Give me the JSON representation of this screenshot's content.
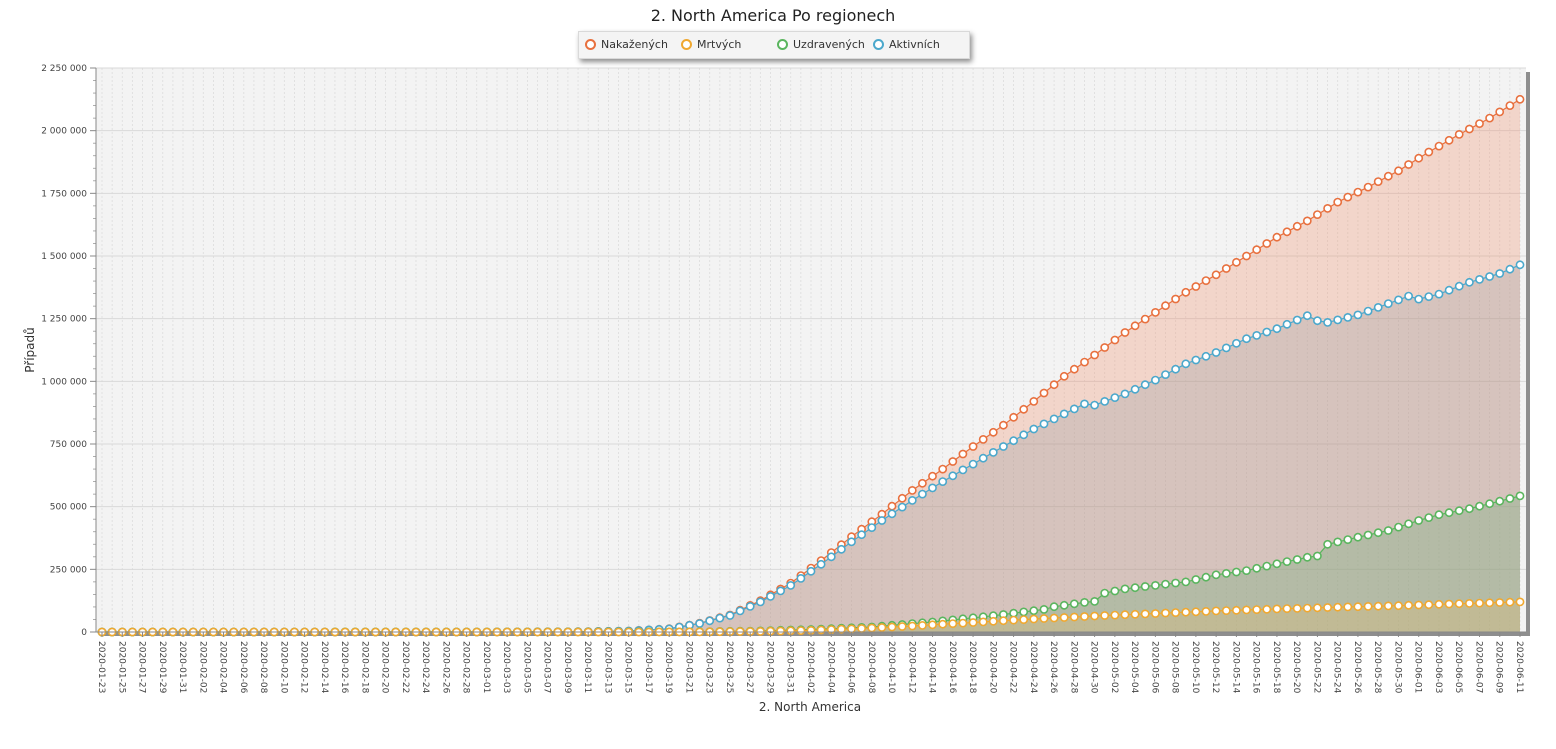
{
  "chart_data": {
    "type": "area",
    "title": "2. North America Po regionech",
    "xlabel": "2. North America",
    "ylabel": "Případů",
    "ylim": [
      0,
      2250000
    ],
    "y_ticks": [
      0,
      250000,
      500000,
      750000,
      1000000,
      1250000,
      1500000,
      1750000,
      2000000,
      2250000
    ],
    "y_tick_labels": [
      "0",
      "250 000",
      "500 000",
      "750 000",
      "1 000 000",
      "1 250 000",
      "1 500 000",
      "1 750 000",
      "2 000 000",
      "2 250 000"
    ],
    "x_start": "2020-01-23",
    "x_end": "2020-06-11",
    "x_tick_labels": [
      "2020-01-23",
      "2020-01-25",
      "2020-01-27",
      "2020-01-29",
      "2020-01-31",
      "2020-02-02",
      "2020-02-04",
      "2020-02-06",
      "2020-02-08",
      "2020-02-10",
      "2020-02-12",
      "2020-02-14",
      "2020-02-16",
      "2020-02-18",
      "2020-02-20",
      "2020-02-22",
      "2020-02-24",
      "2020-02-26",
      "2020-02-28",
      "2020-03-01",
      "2020-03-03",
      "2020-03-05",
      "2020-03-07",
      "2020-03-09",
      "2020-03-11",
      "2020-03-13",
      "2020-03-15",
      "2020-03-17",
      "2020-03-19",
      "2020-03-21",
      "2020-03-23",
      "2020-03-25",
      "2020-03-27",
      "2020-03-29",
      "2020-03-31",
      "2020-04-02",
      "2020-04-04",
      "2020-04-06",
      "2020-04-08",
      "2020-04-10",
      "2020-04-12",
      "2020-04-14",
      "2020-04-16",
      "2020-04-18",
      "2020-04-20",
      "2020-04-22",
      "2020-04-24",
      "2020-04-26",
      "2020-04-28",
      "2020-04-30",
      "2020-05-02",
      "2020-05-04",
      "2020-05-06",
      "2020-05-08",
      "2020-05-10",
      "2020-05-12",
      "2020-05-14",
      "2020-05-16",
      "2020-05-18",
      "2020-05-20",
      "2020-05-22",
      "2020-05-24",
      "2020-05-26",
      "2020-05-28",
      "2020-05-30",
      "2020-06-01",
      "2020-06-03",
      "2020-06-05",
      "2020-06-07",
      "2020-06-09",
      "2020-06-11"
    ],
    "grid": true,
    "legend_position": "top-center",
    "series": [
      {
        "name": "Nakažených",
        "color": "#e8703e",
        "fill": "rgba(240,150,115,0.32)",
        "points": [
          [
            "2020-01-23",
            0
          ],
          [
            "2020-03-01",
            100
          ],
          [
            "2020-03-10",
            1000
          ],
          [
            "2020-03-15",
            4000
          ],
          [
            "2020-03-19",
            13000
          ],
          [
            "2020-03-22",
            35000
          ],
          [
            "2020-03-25",
            68000
          ],
          [
            "2020-03-28",
            125000
          ],
          [
            "2020-03-31",
            195000
          ],
          [
            "2020-04-03",
            285000
          ],
          [
            "2020-04-06",
            380000
          ],
          [
            "2020-04-09",
            470000
          ],
          [
            "2020-04-12",
            565000
          ],
          [
            "2020-04-15",
            650000
          ],
          [
            "2020-04-18",
            740000
          ],
          [
            "2020-04-21",
            825000
          ],
          [
            "2020-04-24",
            920000
          ],
          [
            "2020-04-27",
            1020000
          ],
          [
            "2020-04-30",
            1105000
          ],
          [
            "2020-05-03",
            1195000
          ],
          [
            "2020-05-06",
            1275000
          ],
          [
            "2020-05-09",
            1355000
          ],
          [
            "2020-05-12",
            1425000
          ],
          [
            "2020-05-15",
            1500000
          ],
          [
            "2020-05-18",
            1575000
          ],
          [
            "2020-05-21",
            1640000
          ],
          [
            "2020-05-24",
            1715000
          ],
          [
            "2020-05-27",
            1775000
          ],
          [
            "2020-05-30",
            1840000
          ],
          [
            "2020-06-02",
            1915000
          ],
          [
            "2020-06-05",
            1985000
          ],
          [
            "2020-06-08",
            2050000
          ],
          [
            "2020-06-11",
            2125000
          ]
        ]
      },
      {
        "name": "Mrtvých",
        "color": "#f0a830",
        "fill": "rgba(225,185,110,0.30)",
        "points": [
          [
            "2020-01-23",
            0
          ],
          [
            "2020-03-15",
            50
          ],
          [
            "2020-03-22",
            500
          ],
          [
            "2020-03-28",
            2500
          ],
          [
            "2020-04-02",
            6500
          ],
          [
            "2020-04-07",
            14000
          ],
          [
            "2020-04-12",
            24000
          ],
          [
            "2020-04-18",
            38000
          ],
          [
            "2020-04-24",
            52000
          ],
          [
            "2020-04-30",
            64000
          ],
          [
            "2020-05-06",
            74000
          ],
          [
            "2020-05-12",
            84000
          ],
          [
            "2020-05-18",
            92000
          ],
          [
            "2020-05-24",
            99000
          ],
          [
            "2020-05-30",
            105000
          ],
          [
            "2020-06-05",
            113000
          ],
          [
            "2020-06-11",
            120000
          ]
        ]
      },
      {
        "name": "Uzdravených",
        "color": "#5ab55e",
        "fill": "rgba(120,175,125,0.36)",
        "points": [
          [
            "2020-01-23",
            0
          ],
          [
            "2020-03-20",
            500
          ],
          [
            "2020-03-27",
            3500
          ],
          [
            "2020-04-02",
            10000
          ],
          [
            "2020-04-08",
            20000
          ],
          [
            "2020-04-14",
            40000
          ],
          [
            "2020-04-20",
            65000
          ],
          [
            "2020-04-25",
            90000
          ],
          [
            "2020-04-26",
            101000
          ],
          [
            "2020-04-29",
            118000
          ],
          [
            "2020-04-30",
            122000
          ],
          [
            "2020-05-01",
            155000
          ],
          [
            "2020-05-03",
            172000
          ],
          [
            "2020-05-06",
            186000
          ],
          [
            "2020-05-09",
            200000
          ],
          [
            "2020-05-12",
            228000
          ],
          [
            "2020-05-15",
            245000
          ],
          [
            "2020-05-18",
            272000
          ],
          [
            "2020-05-21",
            298000
          ],
          [
            "2020-05-22",
            303000
          ],
          [
            "2020-05-23",
            350000
          ],
          [
            "2020-05-26",
            378000
          ],
          [
            "2020-05-29",
            405000
          ],
          [
            "2020-06-01",
            445000
          ],
          [
            "2020-06-03",
            468000
          ],
          [
            "2020-06-06",
            492000
          ],
          [
            "2020-06-09",
            522000
          ],
          [
            "2020-06-11",
            543000
          ]
        ]
      },
      {
        "name": "Aktivních",
        "color": "#4ba8cc",
        "fill": "rgba(150,155,160,0.30)",
        "points": [
          [
            "2020-01-23",
            0
          ],
          [
            "2020-03-01",
            100
          ],
          [
            "2020-03-10",
            1000
          ],
          [
            "2020-03-15",
            4000
          ],
          [
            "2020-03-19",
            12500
          ],
          [
            "2020-03-22",
            34000
          ],
          [
            "2020-03-25",
            66000
          ],
          [
            "2020-03-28",
            120000
          ],
          [
            "2020-03-31",
            186000
          ],
          [
            "2020-04-03",
            270000
          ],
          [
            "2020-04-06",
            360000
          ],
          [
            "2020-04-09",
            445000
          ],
          [
            "2020-04-12",
            525000
          ],
          [
            "2020-04-15",
            600000
          ],
          [
            "2020-04-18",
            670000
          ],
          [
            "2020-04-21",
            740000
          ],
          [
            "2020-04-24",
            810000
          ],
          [
            "2020-04-27",
            870000
          ],
          [
            "2020-04-29",
            910000
          ],
          [
            "2020-04-30",
            905000
          ],
          [
            "2020-05-03",
            950000
          ],
          [
            "2020-05-06",
            1005000
          ],
          [
            "2020-05-09",
            1070000
          ],
          [
            "2020-05-12",
            1115000
          ],
          [
            "2020-05-15",
            1170000
          ],
          [
            "2020-05-18",
            1210000
          ],
          [
            "2020-05-21",
            1262000
          ],
          [
            "2020-05-22",
            1242000
          ],
          [
            "2020-05-23",
            1235000
          ],
          [
            "2020-05-26",
            1265000
          ],
          [
            "2020-05-29",
            1310000
          ],
          [
            "2020-05-31",
            1340000
          ],
          [
            "2020-06-01",
            1328000
          ],
          [
            "2020-06-03",
            1348000
          ],
          [
            "2020-06-06",
            1395000
          ],
          [
            "2020-06-09",
            1430000
          ],
          [
            "2020-06-11",
            1465000
          ]
        ]
      }
    ]
  }
}
